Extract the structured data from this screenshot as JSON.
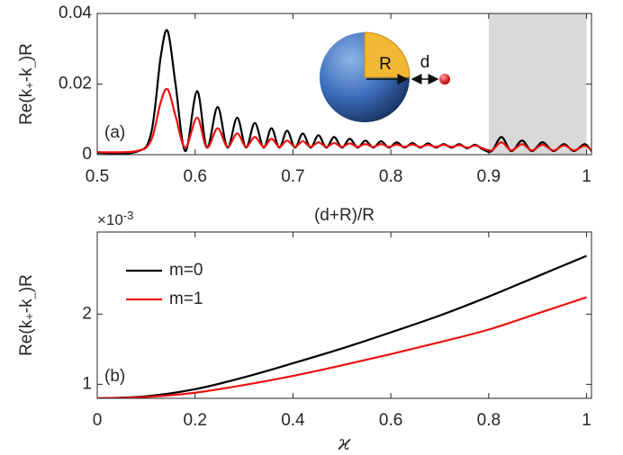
{
  "chart_data": [
    {
      "type": "line",
      "panel_label": "(a)",
      "xlabel": "(d+R)/R",
      "ylabel_parts": [
        "Re(k",
        "+",
        "-k",
        "_",
        ")R"
      ],
      "xlim": [
        0.5,
        1.005
      ],
      "ylim": [
        0,
        0.04
      ],
      "xticks": [
        0.5,
        0.6,
        0.7,
        0.8,
        0.9,
        1
      ],
      "yticks": [
        0,
        0.02,
        0.04
      ],
      "shaded_xrange": [
        0.9,
        1.0
      ],
      "shade_color": "#d9d9d9",
      "inset_labels": [
        "R",
        "d"
      ],
      "x": [
        0.5,
        0.54,
        0.555,
        0.565,
        0.572,
        0.58,
        0.59,
        0.602,
        0.612,
        0.623,
        0.633,
        0.643,
        0.652,
        0.661,
        0.67,
        0.678,
        0.686,
        0.694,
        0.702,
        0.71,
        0.718,
        0.726,
        0.734,
        0.742,
        0.75,
        0.758,
        0.766,
        0.774,
        0.782,
        0.79,
        0.798,
        0.806,
        0.814,
        0.822,
        0.83,
        0.838,
        0.846,
        0.854,
        0.862,
        0.87,
        0.878,
        0.886,
        0.894,
        0.903,
        0.913,
        0.923,
        0.934,
        0.944,
        0.955,
        0.966,
        0.977,
        0.987,
        0.998,
        1.005
      ],
      "series": [
        {
          "color": "#000000",
          "values": [
            0.0005,
            0.0008,
            0.006,
            0.028,
            0.035,
            0.02,
            0.001,
            0.018,
            0.002,
            0.0135,
            0.002,
            0.0105,
            0.002,
            0.009,
            0.002,
            0.0075,
            0.002,
            0.0068,
            0.002,
            0.006,
            0.002,
            0.0055,
            0.002,
            0.005,
            0.002,
            0.0045,
            0.002,
            0.004,
            0.002,
            0.0038,
            0.002,
            0.0035,
            0.002,
            0.0033,
            0.002,
            0.0032,
            0.002,
            0.003,
            0.002,
            0.003,
            0.0018,
            0.0028,
            0.0015,
            0.001,
            0.005,
            0.001,
            0.004,
            0.001,
            0.0035,
            0.001,
            0.003,
            0.001,
            0.003,
            0.001
          ]
        },
        {
          "color": "#ee1111",
          "values": [
            0.0007,
            0.001,
            0.004,
            0.015,
            0.0185,
            0.011,
            0.002,
            0.0105,
            0.002,
            0.0075,
            0.0022,
            0.006,
            0.0022,
            0.005,
            0.0022,
            0.0045,
            0.0022,
            0.004,
            0.0022,
            0.0038,
            0.0022,
            0.0035,
            0.0022,
            0.0033,
            0.0022,
            0.0032,
            0.0022,
            0.003,
            0.0022,
            0.003,
            0.0022,
            0.0029,
            0.0022,
            0.0029,
            0.0022,
            0.0028,
            0.0022,
            0.0028,
            0.0022,
            0.0027,
            0.002,
            0.0026,
            0.0018,
            0.0012,
            0.0035,
            0.0012,
            0.003,
            0.0012,
            0.0028,
            0.0012,
            0.0026,
            0.0012,
            0.0025,
            0.0012
          ]
        }
      ]
    },
    {
      "type": "line",
      "panel_label": "(b)",
      "xlabel": "ϰ",
      "ylabel_parts": [
        "Re(k",
        "+",
        "-k",
        "_",
        ")R"
      ],
      "y_multiplier": {
        "base": "×10",
        "exponent": "-3"
      },
      "xlim": [
        0,
        1.01
      ],
      "ylim": [
        0.8,
        3.17
      ],
      "xticks": [
        0,
        0.2,
        0.4,
        0.6,
        0.8,
        1
      ],
      "yticks": [
        1,
        2
      ],
      "legend": "upper left",
      "x": [
        0,
        0.1,
        0.2,
        0.3,
        0.4,
        0.5,
        0.6,
        0.7,
        0.8,
        0.9,
        1
      ],
      "series": [
        {
          "name": "m=0",
          "color": "#000000",
          "values": [
            0.8,
            0.83,
            0.93,
            1.1,
            1.3,
            1.51,
            1.74,
            1.98,
            2.25,
            2.54,
            2.83
          ]
        },
        {
          "name": "m=1",
          "color": "#ee1111",
          "values": [
            0.8,
            0.82,
            0.88,
            0.99,
            1.12,
            1.27,
            1.43,
            1.6,
            1.78,
            2.01,
            2.24
          ]
        }
      ]
    }
  ]
}
